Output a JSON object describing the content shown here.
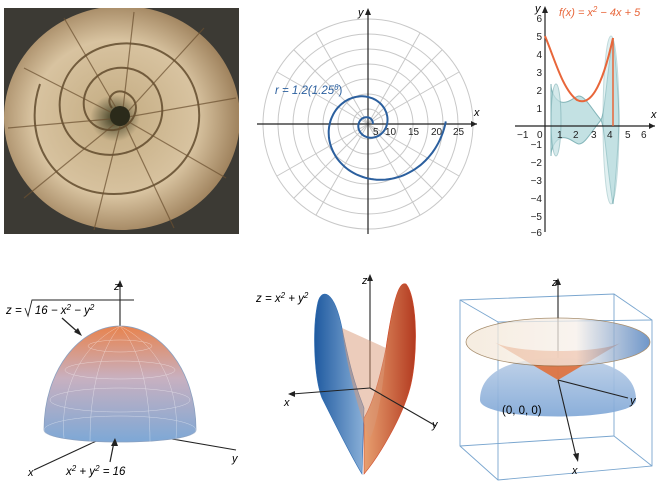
{
  "colors": {
    "spiral": "#2b5f9e",
    "parabola": "#e8663a",
    "solid_fill": "#b9dcdf",
    "solid_stroke": "#6fa9ad",
    "hemisphere_top": "#e8834e",
    "hemisphere_bottom": "#7da8d6",
    "saddle_blue": "#2f6db3",
    "saddle_red": "#cf4a2b",
    "cone_orange": "#e0703b",
    "grid": "#c8c8c8",
    "axis": "#222222"
  },
  "nautilus_photo": {
    "icon": "nautilus-shell-photo"
  },
  "polar_spiral": {
    "equation": "r = 1.2(1.25",
    "equation_sup": "θ",
    "equation_end": ")",
    "axis_x": "x",
    "axis_y": "y",
    "ticks": [
      "5",
      "10",
      "15",
      "20",
      "25"
    ]
  },
  "solid_revolution": {
    "equation": "f(x) = x",
    "equation_sup": "2",
    "equation_end": " − 4x + 5",
    "axis_x": "x",
    "axis_y": "y",
    "x_ticks": [
      "−1",
      "0",
      "1",
      "2",
      "3",
      "4",
      "5",
      "6"
    ],
    "y_ticks": [
      "6",
      "5",
      "4",
      "3",
      "2",
      "1",
      "−1",
      "−2",
      "−3",
      "−4",
      "−5",
      "−6"
    ]
  },
  "hemisphere": {
    "top_eq_prefix": "z = ",
    "top_eq_radicand": "16 − x",
    "top_eq_sup1": "2",
    "top_eq_mid": " − y",
    "top_eq_sup2": "2",
    "bottom_eq": "x",
    "bottom_sup1": "2",
    "bottom_mid": " + y",
    "bottom_sup2": "2",
    "bottom_end": " = 16",
    "axis_x": "x",
    "axis_y": "y",
    "axis_z": "z"
  },
  "saddle": {
    "eq_prefix": "z = x",
    "eq_sup1": "2",
    "eq_mid": " + y",
    "eq_sup2": "2",
    "axis_x": "x",
    "axis_y": "y",
    "axis_z": "z"
  },
  "cone_box": {
    "origin_label": "(0, 0, 0)",
    "axis_x": "x",
    "axis_y": "y",
    "axis_z": "z"
  }
}
